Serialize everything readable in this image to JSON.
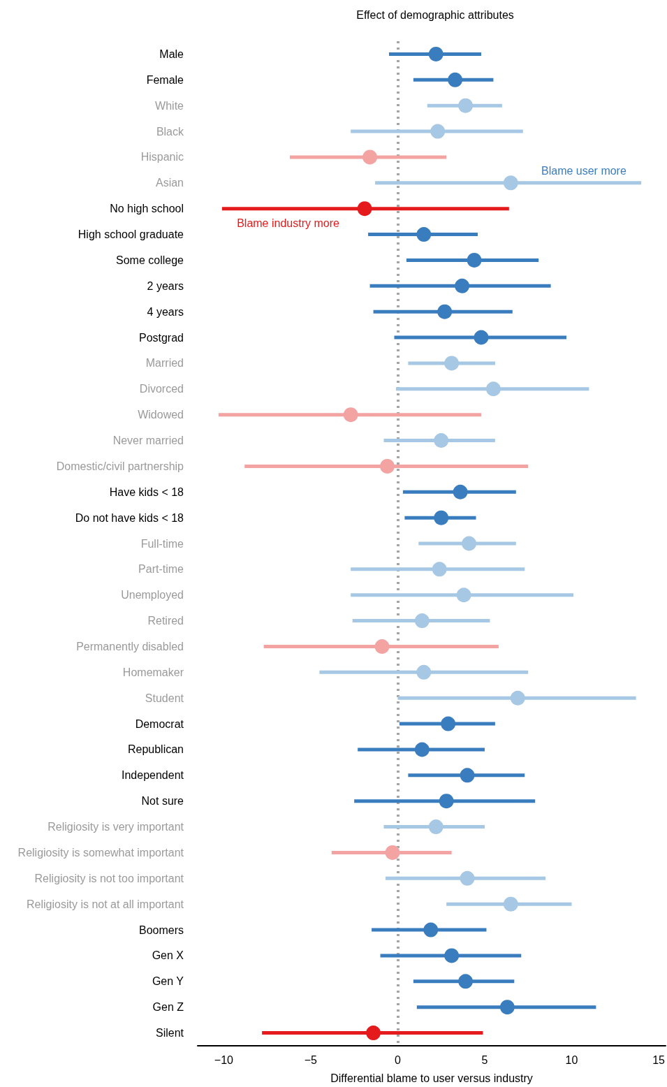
{
  "chart_data": {
    "type": "scatter",
    "orientation": "horizontal",
    "title": "Effect of demographic attributes",
    "xlabel": "Differential blame to user versus industry",
    "categories": [
      "Male",
      "Female",
      "White",
      "Black",
      "Hispanic",
      "Asian",
      "No high school",
      "High school graduate",
      "Some college",
      "2 years",
      "4 years",
      "Postgrad",
      "Married",
      "Divorced",
      "Widowed",
      "Never married",
      "Domestic/civil partnership",
      "Have kids < 18",
      "Do not have kids < 18",
      "Full-time",
      "Part-time",
      "Unemployed",
      "Retired",
      "Permanently disabled",
      "Homemaker",
      "Student",
      "Democrat",
      "Republican",
      "Independent",
      "Not sure",
      "Religiosity is very important",
      "Religiosity is somewhat important",
      "Religiosity is not too important",
      "Religiosity is not at all important",
      "Boomers",
      "Gen X",
      "Gen Y",
      "Gen Z",
      "Silent"
    ],
    "values": [
      2.2,
      3.3,
      3.9,
      2.3,
      -1.6,
      6.5,
      -1.9,
      1.5,
      4.4,
      3.7,
      2.7,
      4.8,
      3.1,
      5.5,
      -2.7,
      2.5,
      -0.6,
      3.6,
      2.5,
      4.1,
      2.4,
      3.8,
      1.4,
      -0.9,
      1.5,
      6.9,
      2.9,
      1.4,
      4.0,
      2.8,
      2.2,
      -0.3,
      4.0,
      6.5,
      1.9,
      3.1,
      3.9,
      6.3,
      -1.4
    ],
    "errors": [
      [
        -0.5,
        4.8
      ],
      [
        0.9,
        5.5
      ],
      [
        1.7,
        6.0
      ],
      [
        -2.7,
        7.2
      ],
      [
        -6.2,
        2.8
      ],
      [
        -1.3,
        14.0
      ],
      [
        -10.1,
        6.4
      ],
      [
        -1.7,
        4.6
      ],
      [
        0.5,
        8.1
      ],
      [
        -1.6,
        8.8
      ],
      [
        -1.4,
        6.6
      ],
      [
        -0.2,
        9.7
      ],
      [
        0.6,
        5.6
      ],
      [
        -0.1,
        11.0
      ],
      [
        -10.3,
        4.8
      ],
      [
        -0.8,
        5.6
      ],
      [
        -8.8,
        7.5
      ],
      [
        0.3,
        6.8
      ],
      [
        0.4,
        4.5
      ],
      [
        1.2,
        6.8
      ],
      [
        -2.7,
        7.3
      ],
      [
        -2.7,
        10.1
      ],
      [
        -2.6,
        5.3
      ],
      [
        -7.7,
        5.8
      ],
      [
        -4.5,
        7.5
      ],
      [
        0.0,
        13.7
      ],
      [
        0.1,
        5.6
      ],
      [
        -2.3,
        5.0
      ],
      [
        0.6,
        7.3
      ],
      [
        -2.5,
        7.9
      ],
      [
        -0.8,
        5.0
      ],
      [
        -3.8,
        3.1
      ],
      [
        -0.7,
        8.5
      ],
      [
        2.8,
        10.0
      ],
      [
        -1.5,
        5.1
      ],
      [
        -1.0,
        7.1
      ],
      [
        0.9,
        6.7
      ],
      [
        1.1,
        11.4
      ],
      [
        -7.8,
        4.9
      ]
    ],
    "colors": [
      "#3a7dbf",
      "#3a7dbf",
      "#a6c8e4",
      "#a6c8e4",
      "#f4a3a3",
      "#a6c8e4",
      "#e41a1c",
      "#3a7dbf",
      "#3a7dbf",
      "#3a7dbf",
      "#3a7dbf",
      "#3a7dbf",
      "#a6c8e4",
      "#a6c8e4",
      "#f4a3a3",
      "#a6c8e4",
      "#f4a3a3",
      "#3a7dbf",
      "#3a7dbf",
      "#a6c8e4",
      "#a6c8e4",
      "#a6c8e4",
      "#a6c8e4",
      "#f4a3a3",
      "#a6c8e4",
      "#a6c8e4",
      "#3a7dbf",
      "#3a7dbf",
      "#3a7dbf",
      "#3a7dbf",
      "#a6c8e4",
      "#f4a3a3",
      "#a6c8e4",
      "#a6c8e4",
      "#3a7dbf",
      "#3a7dbf",
      "#3a7dbf",
      "#3a7dbf",
      "#e41a1c"
    ],
    "xlim": [
      -11.5,
      15.4
    ],
    "xticks": [
      {
        "value": -10,
        "label": "−10"
      },
      {
        "value": -5,
        "label": "−5"
      },
      0,
      5,
      10,
      15
    ],
    "ref_lines": [
      {
        "axis": "x",
        "value": 0,
        "color": "#a6a6a6",
        "line_style": "dotted"
      }
    ],
    "annotations": [
      {
        "text": "Blame user more",
        "x": 10.7,
        "y": "Asian"
      },
      {
        "text": "Blame industry more",
        "x": -6.3,
        "y": "No high school"
      }
    ],
    "grid": false,
    "marker": "circle"
  }
}
